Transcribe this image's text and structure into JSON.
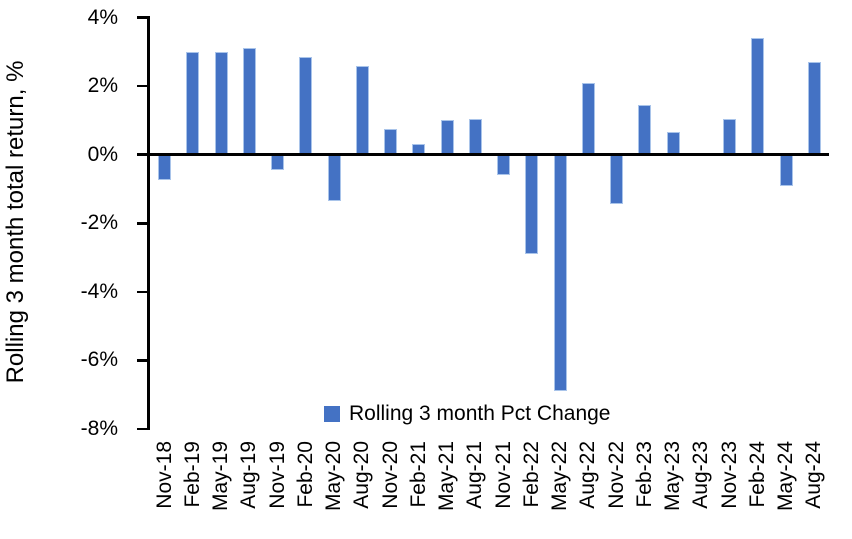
{
  "chart_data": {
    "type": "bar",
    "title": "",
    "xlabel": "",
    "ylabel": "Rolling 3 month total return, %",
    "ylim": [
      -8,
      4
    ],
    "ytick_step": 2,
    "ytick_suffix": "%",
    "yticks": [
      "4%",
      "2%",
      "0%",
      "-2%",
      "-4%",
      "-6%",
      "-8%"
    ],
    "grid": "off",
    "legend_position": "bottom-center",
    "categories": [
      "Nov-18",
      "Feb-19",
      "May-19",
      "Aug-19",
      "Nov-19",
      "Feb-20",
      "May-20",
      "Aug-20",
      "Nov-20",
      "Feb-21",
      "May-21",
      "Aug-21",
      "Nov-21",
      "Feb-22",
      "May-22",
      "Aug-22",
      "Nov-22",
      "Feb-23",
      "May-23",
      "Aug-23",
      "Nov-23",
      "Feb-24",
      "May-24",
      "Aug-24"
    ],
    "series": [
      {
        "name": "Rolling 3 month Pct Change",
        "values": [
          -0.75,
          3.0,
          3.0,
          3.1,
          -0.45,
          2.85,
          -1.35,
          2.6,
          0.75,
          0.3,
          1.0,
          1.05,
          -0.6,
          -2.9,
          -6.9,
          2.1,
          -1.45,
          1.45,
          0.65,
          0.0,
          1.05,
          3.4,
          -0.9,
          2.7
        ]
      }
    ]
  },
  "legend": {
    "label": "Rolling 3 month Pct Change"
  },
  "colors": {
    "bar": "#4472C4",
    "bar_edge": "#A9C4EA",
    "axis": "#000000",
    "text": "#000000",
    "background": "#FFFFFF"
  }
}
